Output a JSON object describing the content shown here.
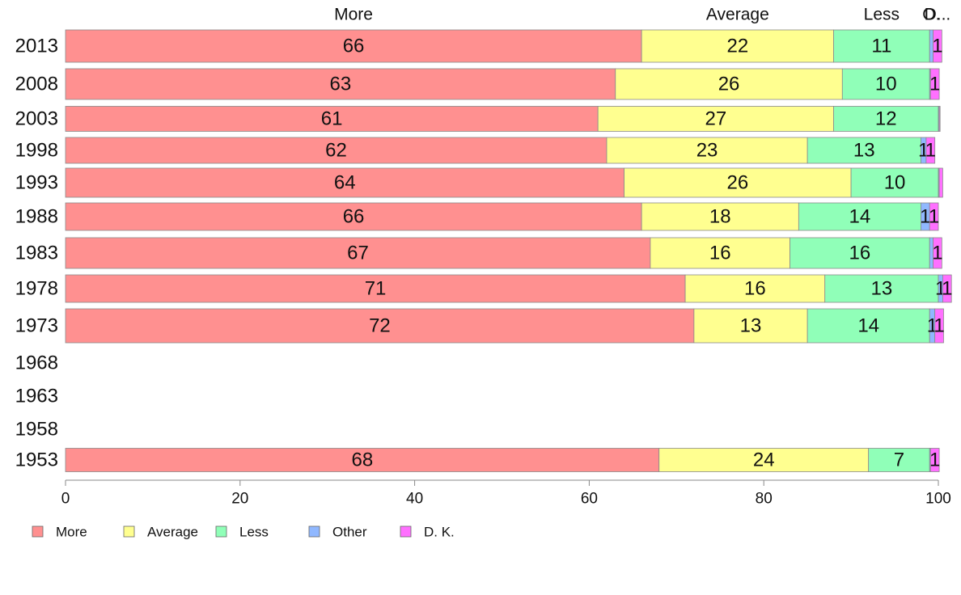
{
  "chart_data": {
    "type": "bar",
    "orientation": "horizontal",
    "stacked": true,
    "categories": [
      "2013",
      "2008",
      "2003",
      "1998",
      "1993",
      "1988",
      "1983",
      "1978",
      "1973",
      "1968",
      "1963",
      "1958",
      "1953"
    ],
    "series": [
      {
        "name": "More",
        "color": "#FF9090",
        "values": [
          66,
          63,
          61,
          62,
          64,
          66,
          67,
          71,
          72,
          null,
          null,
          null,
          68
        ]
      },
      {
        "name": "Average",
        "color": "#FFFF90",
        "values": [
          22,
          26,
          27,
          23,
          26,
          18,
          16,
          16,
          13,
          null,
          null,
          null,
          24
        ]
      },
      {
        "name": "Less",
        "color": "#90FFB8",
        "values": [
          11,
          10,
          12,
          13,
          10,
          14,
          16,
          13,
          14,
          null,
          null,
          null,
          7
        ]
      },
      {
        "name": "Other",
        "color": "#90B8FF",
        "values": [
          0.4,
          0.1,
          0.1,
          0.6,
          0.1,
          1,
          0.4,
          0.5,
          0.6,
          null,
          null,
          null,
          0.1
        ]
      },
      {
        "name": "D. K.",
        "color": "#FF70FF",
        "values": [
          1,
          1,
          0.1,
          1,
          0.4,
          1,
          1,
          1,
          1,
          null,
          null,
          null,
          1
        ]
      }
    ],
    "bar_labels": {
      "More": [
        "66",
        "63",
        "61",
        "62",
        "64",
        "66",
        "67",
        "71",
        "72",
        "",
        "",
        "",
        "68"
      ],
      "Average": [
        "22",
        "26",
        "27",
        "23",
        "26",
        "18",
        "16",
        "16",
        "13",
        "",
        "",
        "",
        "24"
      ],
      "Less": [
        "11",
        "10",
        "12",
        "13",
        "10",
        "14",
        "16",
        "13",
        "14",
        "",
        "",
        "",
        "7"
      ],
      "Other": [
        "",
        "",
        "",
        "1",
        "",
        "1",
        "",
        "1",
        "1",
        "",
        "",
        "",
        ""
      ],
      "D. K.": [
        "1",
        "1",
        "",
        "1",
        "",
        "1",
        "1",
        "1",
        "1",
        "",
        "",
        "",
        "1"
      ]
    },
    "column_headers": [
      "More",
      "Average",
      "Less",
      "O.",
      "D..."
    ],
    "x_ticks": [
      0,
      20,
      40,
      60,
      80,
      100
    ],
    "xlim": [
      0,
      100
    ],
    "legend": {
      "position": "bottom-left",
      "entries": [
        "More",
        "Average",
        "Less",
        "Other",
        "D. K."
      ]
    },
    "grid": false
  }
}
